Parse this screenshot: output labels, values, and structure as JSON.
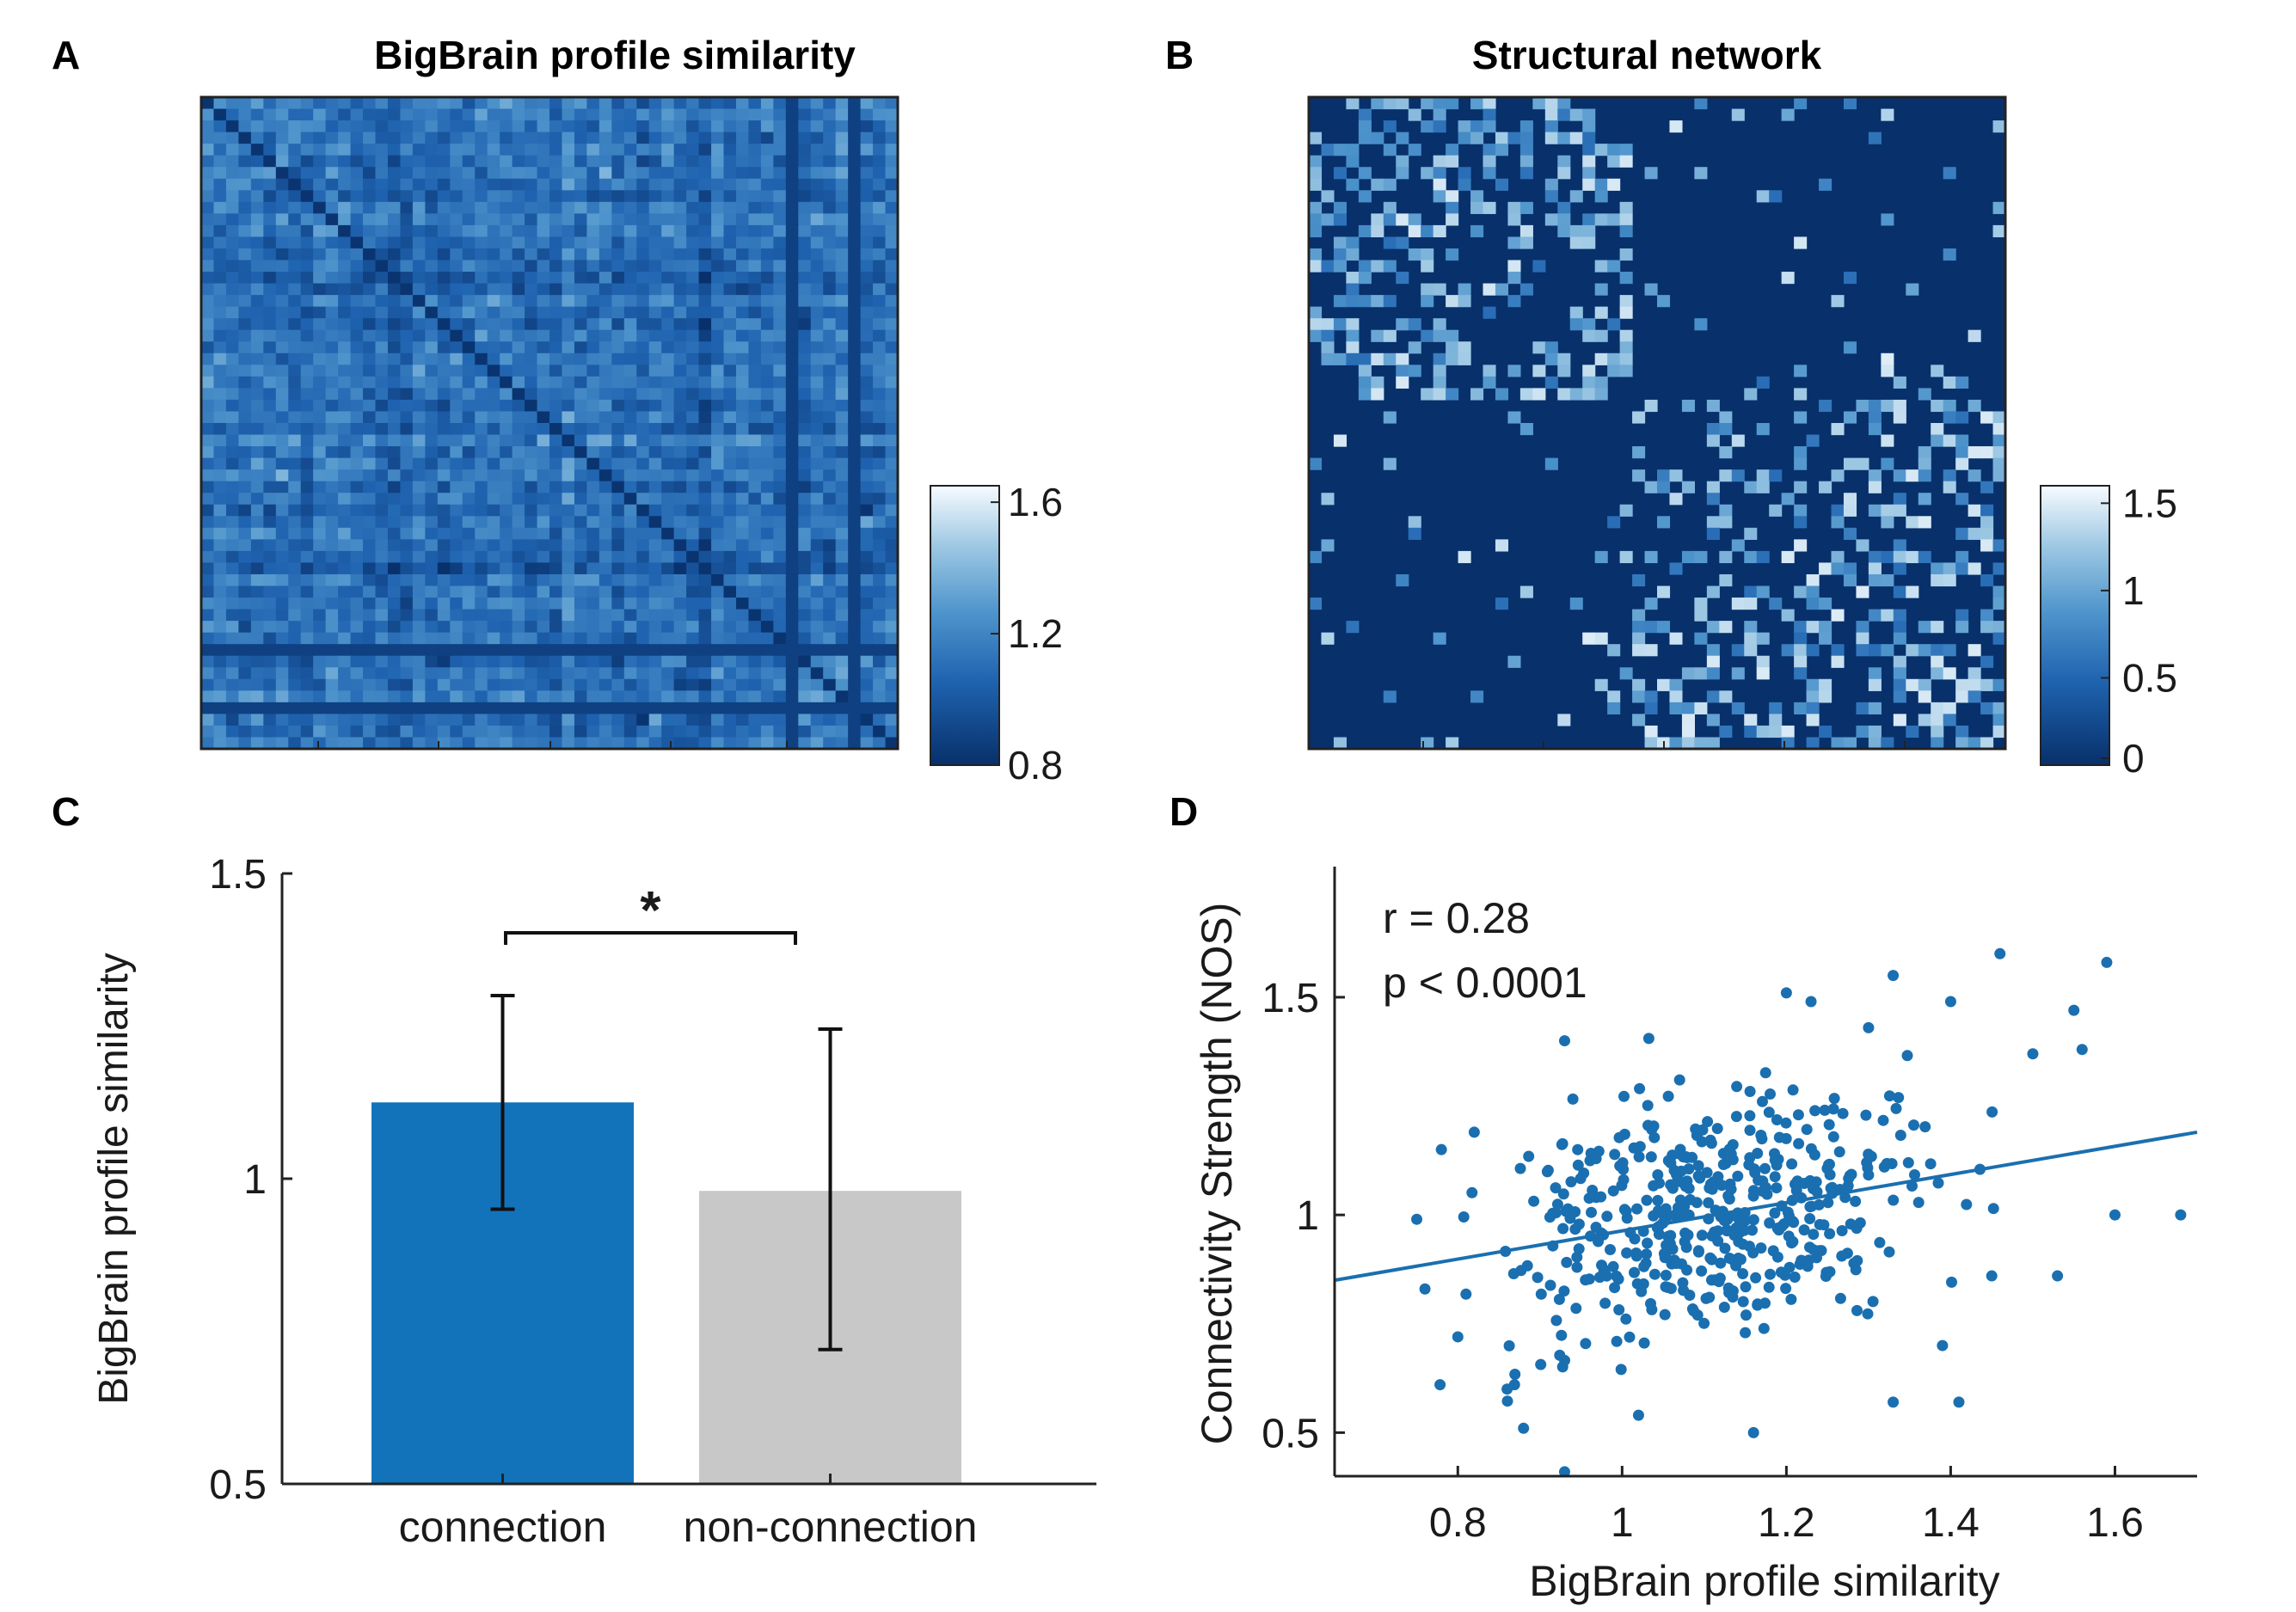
{
  "panels": {
    "a": {
      "letter": "A",
      "title": "BigBrain profile similarity"
    },
    "b": {
      "letter": "B",
      "title": "Structural network"
    },
    "c": {
      "letter": "C"
    },
    "d": {
      "letter": "D"
    }
  },
  "colors": {
    "colormap_low": "#08306b",
    "colormap_mid": "#2171b5",
    "colormap_high": "#f7fbff",
    "connection_bar": "#1273bb",
    "non_connection_bar": "#c8c8c8",
    "scatter": "#1a6fb0"
  },
  "chart_data": [
    {
      "panel": "A",
      "type": "heatmap",
      "title": "BigBrain profile similarity",
      "matrix_size": 56,
      "diagonal": "dark (low similarity to self-omitted band)",
      "colorbar": {
        "ticks": [
          0.8,
          1.2,
          1.6
        ],
        "tick_labels": [
          "0.8",
          "1.2",
          "1.6"
        ],
        "range": [
          0.8,
          1.65
        ]
      }
    },
    {
      "panel": "B",
      "type": "heatmap",
      "title": "Structural network",
      "matrix_size": 56,
      "structure": "two hemispheric blocks with sparse connections",
      "colorbar": {
        "ticks": [
          0,
          0.5,
          1,
          1.5
        ],
        "tick_labels": [
          "0",
          "0.5",
          "1",
          "1.5"
        ],
        "range": [
          0,
          1.6
        ]
      }
    },
    {
      "panel": "C",
      "type": "bar",
      "categories": [
        "connection",
        "non-connection"
      ],
      "values": [
        1.125,
        0.98
      ],
      "error_low": [
        0.95,
        0.72
      ],
      "error_high": [
        1.3,
        1.245
      ],
      "ylabel": "BigBrain profile similarity",
      "ylim": [
        0.5,
        1.5
      ],
      "yticks": [
        "0.5",
        "1",
        "1.5"
      ],
      "significance": "*"
    },
    {
      "panel": "D",
      "type": "scatter",
      "xlabel": "BigBrain profile similarity",
      "ylabel": "Connectivity Strength (NOS)",
      "xlim": [
        0.65,
        1.7
      ],
      "ylim": [
        0.4,
        1.8
      ],
      "xticks": [
        "0.8",
        "1",
        "1.2",
        "1.4",
        "1.6"
      ],
      "yticks": [
        "0.5",
        "1",
        "1.5"
      ],
      "fit_line": {
        "x": [
          0.65,
          1.7
        ],
        "y": [
          0.85,
          1.19
        ]
      },
      "stats": [
        "r = 0.28",
        "p < 0.0001"
      ],
      "highlighted_points": [
        {
          "x": 0.75,
          "y": 0.99
        },
        {
          "x": 0.76,
          "y": 0.83
        },
        {
          "x": 0.78,
          "y": 1.15
        },
        {
          "x": 0.8,
          "y": 0.72
        },
        {
          "x": 0.82,
          "y": 1.19
        },
        {
          "x": 0.86,
          "y": 0.6
        },
        {
          "x": 0.88,
          "y": 0.51
        },
        {
          "x": 0.93,
          "y": 0.41
        },
        {
          "x": 0.93,
          "y": 1.4
        },
        {
          "x": 1.07,
          "y": 1.31
        },
        {
          "x": 1.2,
          "y": 1.51
        },
        {
          "x": 1.23,
          "y": 1.49
        },
        {
          "x": 1.3,
          "y": 1.43
        },
        {
          "x": 1.33,
          "y": 1.55
        },
        {
          "x": 1.4,
          "y": 1.49
        },
        {
          "x": 1.46,
          "y": 1.6
        },
        {
          "x": 1.5,
          "y": 1.37
        },
        {
          "x": 1.55,
          "y": 1.47
        },
        {
          "x": 1.56,
          "y": 1.38
        },
        {
          "x": 1.59,
          "y": 1.58
        },
        {
          "x": 1.68,
          "y": 1.0
        },
        {
          "x": 1.6,
          "y": 1.0
        },
        {
          "x": 1.41,
          "y": 0.57
        },
        {
          "x": 1.33,
          "y": 0.57
        },
        {
          "x": 1.16,
          "y": 0.5
        },
        {
          "x": 1.02,
          "y": 0.54
        },
        {
          "x": 1.45,
          "y": 0.86
        },
        {
          "x": 1.53,
          "y": 0.86
        },
        {
          "x": 1.39,
          "y": 0.7
        }
      ]
    }
  ]
}
